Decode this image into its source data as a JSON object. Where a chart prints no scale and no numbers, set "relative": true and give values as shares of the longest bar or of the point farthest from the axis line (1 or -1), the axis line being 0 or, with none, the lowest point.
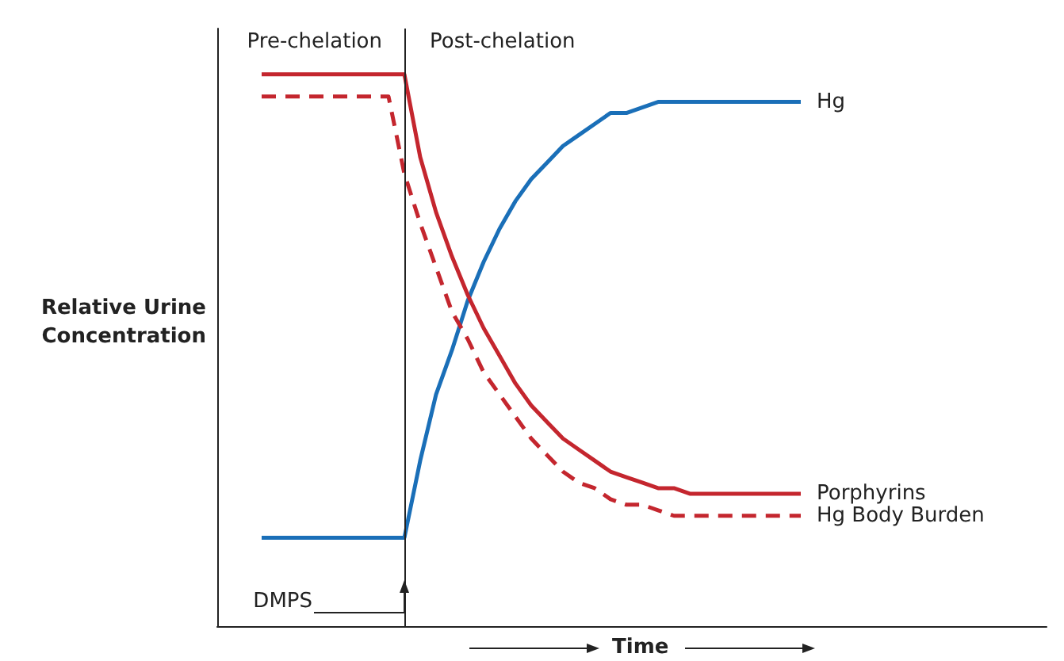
{
  "chart_data": {
    "type": "line",
    "relative": true,
    "xlabel": "Time",
    "ylabel": "Relative Urine Concentration",
    "annotations": [
      "Pre-chelation",
      "Post-chelation"
    ],
    "categories": [
      null,
      null,
      null,
      null,
      null,
      null,
      null,
      null,
      null,
      null,
      null,
      null,
      null,
      null,
      null,
      null,
      null,
      null,
      null,
      null,
      null,
      null,
      null,
      null,
      null,
      null,
      null,
      null,
      null,
      null,
      null,
      null,
      null,
      null,
      null
    ],
    "series": [
      {
        "name": "Hg",
        "color": "#1a6fb8",
        "line_style": "solid",
        "values": [
          0.16,
          0.16,
          0.16,
          0.16,
          0.16,
          0.16,
          0.16,
          0.16,
          0.16,
          0.16,
          0.3,
          0.42,
          0.5,
          0.59,
          0.66,
          0.72,
          0.77,
          0.81,
          0.84,
          0.87,
          0.89,
          0.91,
          0.93,
          0.93,
          0.94,
          0.95,
          0.95,
          0.95,
          0.95,
          0.95,
          0.95,
          0.95,
          0.95,
          0.95,
          0.95
        ]
      },
      {
        "name": "Porphyrins",
        "color": "#c4262e",
        "line_style": "solid",
        "values": [
          1,
          1,
          1,
          1,
          1,
          1,
          1,
          1,
          1,
          1,
          0.85,
          0.75,
          0.67,
          0.6,
          0.54,
          0.49,
          0.44,
          0.4,
          0.37,
          0.34,
          0.32,
          0.3,
          0.28,
          0.27,
          0.26,
          0.25,
          0.25,
          0.24,
          0.24,
          0.24,
          0.24,
          0.24,
          0.24,
          0.24,
          0.24
        ]
      },
      {
        "name": "Hg Body Burden",
        "color": "#c4262e",
        "line_style": "dashed",
        "values": [
          0.96,
          0.96,
          0.96,
          0.96,
          0.96,
          0.96,
          0.96,
          0.96,
          0.96,
          0.82,
          0.73,
          0.65,
          0.57,
          0.52,
          0.46,
          0.42,
          0.38,
          0.34,
          0.31,
          0.28,
          0.26,
          0.25,
          0.23,
          0.22,
          0.22,
          0.21,
          0.2,
          0.2,
          0.2,
          0.2,
          0.2,
          0.2,
          0.2,
          0.2,
          0.2
        ]
      }
    ],
    "ref_lines": [
      {
        "axis": "x",
        "label": "DMPS",
        "color": "#222222"
      }
    ],
    "grid": false,
    "legend": false,
    "marker": "none",
    "tick_labels": false
  }
}
